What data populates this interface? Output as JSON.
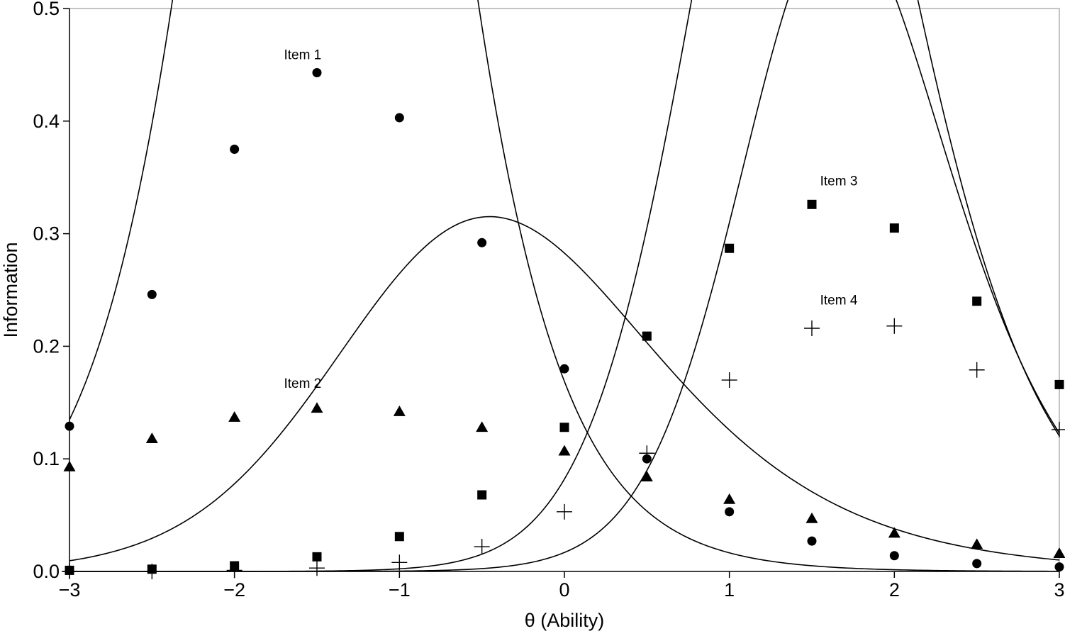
{
  "chart_data": {
    "type": "line",
    "xlabel": "θ (Ability)",
    "ylabel": "Information",
    "xlim": [
      -3,
      3
    ],
    "ylim": [
      0,
      0.5
    ],
    "xticks": [
      -3,
      -2,
      -1,
      0,
      1,
      2,
      3
    ],
    "xtick_labels": [
      "−3",
      "−2",
      "−1",
      "0",
      "1",
      "2",
      "3"
    ],
    "yticks": [
      0,
      0.1,
      0.2,
      0.3,
      0.4,
      0.5
    ],
    "ytick_labels": [
      "0.0",
      "0.1",
      "0.2",
      "0.3",
      "0.4",
      "0.5"
    ],
    "grid": false,
    "legend": "none",
    "x": [
      -3,
      -2.5,
      -2,
      -1.5,
      -1,
      -0.5,
      0,
      0.5,
      1,
      1.5,
      2,
      2.5,
      3
    ],
    "series": [
      {
        "name": "Item 1",
        "marker": "circle",
        "label_at": [
          -1.7,
          0.455
        ],
        "params": {
          "a": 1.4,
          "b": -1.45,
          "c": 0
        },
        "values": [
          0.129,
          0.246,
          0.375,
          0.443,
          0.403,
          0.292,
          0.18,
          0.1,
          0.053,
          0.027,
          0.014,
          0.007,
          0.004
        ]
      },
      {
        "name": "Item 2",
        "marker": "triangle",
        "label_at": [
          -1.7,
          0.163
        ],
        "params": {
          "a": 0.8,
          "b": -0.65,
          "c": 0.2
        },
        "values": [
          0.093,
          0.118,
          0.137,
          0.145,
          0.142,
          0.128,
          0.107,
          0.084,
          0.064,
          0.047,
          0.034,
          0.024,
          0.016
        ]
      },
      {
        "name": "Item 3",
        "marker": "square",
        "label_at": [
          1.55,
          0.343
        ],
        "params": {
          "a": 1.2,
          "b": 1.35,
          "c": 0.1
        },
        "values": [
          0.001,
          0.002,
          0.005,
          0.013,
          0.031,
          0.068,
          0.128,
          0.209,
          0.287,
          0.326,
          0.305,
          0.24,
          0.166
        ]
      },
      {
        "name": "Item 4",
        "marker": "plus",
        "label_at": [
          1.55,
          0.237
        ],
        "params": {
          "a": 1.2,
          "b": 1.5,
          "c": 0.3
        },
        "values": [
          0.0,
          0.0,
          0.001,
          0.003,
          0.008,
          0.022,
          0.053,
          0.105,
          0.17,
          0.216,
          0.218,
          0.179,
          0.126
        ]
      }
    ]
  }
}
